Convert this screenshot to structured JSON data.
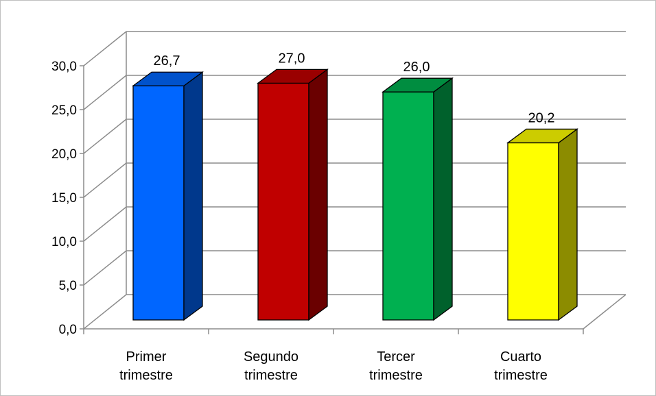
{
  "chart_data": {
    "type": "bar",
    "style": "3d-column",
    "categories": [
      [
        "Primer",
        "trimestre"
      ],
      [
        "Segundo",
        "trimestre"
      ],
      [
        "Tercer",
        "trimestre"
      ],
      [
        "Cuarto",
        "trimestre"
      ]
    ],
    "values": [
      26.7,
      27.0,
      26.0,
      20.2
    ],
    "data_labels": [
      "26,7",
      "27,0",
      "26,0",
      "20,2"
    ],
    "bar_colors": [
      "#0066ff",
      "#c00000",
      "#00b050",
      "#ffff00"
    ],
    "ylim": [
      0,
      30
    ],
    "yticks": [
      "0,0",
      "5,0",
      "10,0",
      "15,0",
      "20,0",
      "25,0",
      "30,0"
    ],
    "grid": true,
    "legend": "none",
    "title": "",
    "xlabel": "",
    "ylabel": ""
  }
}
